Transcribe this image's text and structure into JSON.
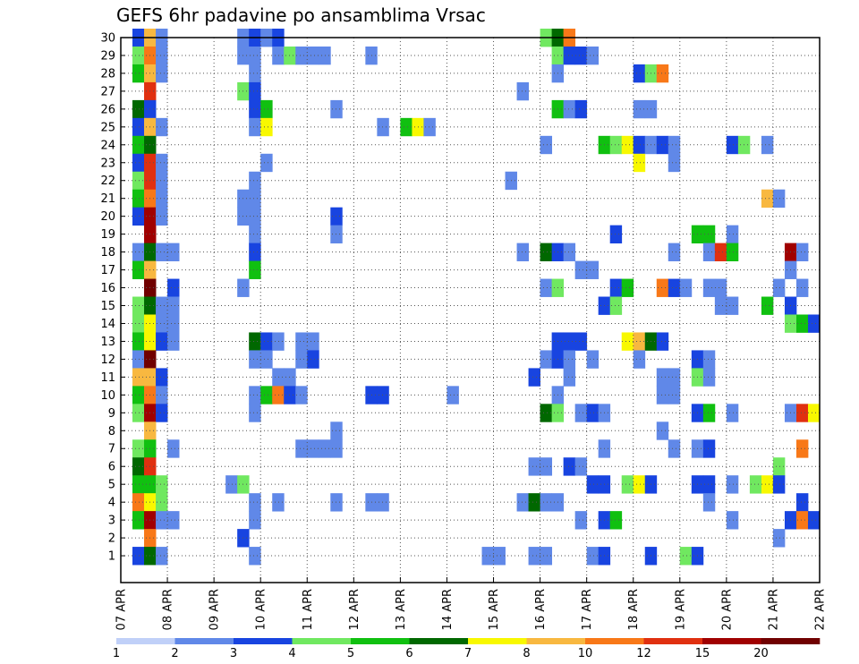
{
  "chart_data": {
    "type": "heatmap",
    "title": "GEFS 6hr padavine po ansamblima Vrsac",
    "xlabel": "",
    "ylabel": "",
    "x_ticks": [
      "07 APR",
      "08 APR",
      "09 APR",
      "10 APR",
      "11 APR",
      "12 APR",
      "13 APR",
      "14 APR",
      "15 APR",
      "16 APR",
      "17 APR",
      "18 APR",
      "19 APR",
      "20 APR",
      "21 APR",
      "22 APR"
    ],
    "x_range_days": [
      0,
      15
    ],
    "steps_per_day": 4,
    "y_ticks": [
      1,
      2,
      3,
      4,
      5,
      6,
      7,
      8,
      9,
      10,
      11,
      12,
      13,
      14,
      15,
      16,
      17,
      18,
      19,
      20,
      21,
      22,
      23,
      24,
      25,
      26,
      27,
      28,
      29,
      30
    ],
    "y_range": [
      0,
      30
    ],
    "grid": true,
    "colorbar": {
      "levels": [
        "1",
        "2",
        "3",
        "4",
        "5",
        "6",
        "7",
        "8",
        "10",
        "12",
        "15",
        "20"
      ],
      "colors": [
        "#c0d0f8",
        "#6088e8",
        "#1844e0",
        "#70e860",
        "#10c010",
        "#006800",
        "#f8f800",
        "#f8b840",
        "#f87818",
        "#e03010",
        "#a00000",
        "#700000"
      ]
    },
    "cells": [
      [
        30,
        1,
        2
      ],
      [
        30,
        2,
        7
      ],
      [
        30,
        3,
        1
      ],
      [
        30,
        10,
        1
      ],
      [
        30,
        11,
        2
      ],
      [
        30,
        12,
        1
      ],
      [
        30,
        13,
        2
      ],
      [
        30,
        36,
        3
      ],
      [
        30,
        37,
        5
      ],
      [
        30,
        38,
        8
      ],
      [
        29,
        1,
        3
      ],
      [
        29,
        2,
        8
      ],
      [
        29,
        3,
        1
      ],
      [
        29,
        10,
        1
      ],
      [
        29,
        11,
        1
      ],
      [
        29,
        13,
        1
      ],
      [
        29,
        14,
        3
      ],
      [
        29,
        15,
        1
      ],
      [
        29,
        16,
        1
      ],
      [
        29,
        17,
        1
      ],
      [
        29,
        21,
        1
      ],
      [
        29,
        37,
        3
      ],
      [
        29,
        38,
        2
      ],
      [
        29,
        39,
        2
      ],
      [
        29,
        40,
        1
      ],
      [
        28,
        1,
        4
      ],
      [
        28,
        2,
        7
      ],
      [
        28,
        3,
        1
      ],
      [
        28,
        11,
        1
      ],
      [
        28,
        37,
        1
      ],
      [
        28,
        44,
        2
      ],
      [
        28,
        45,
        3
      ],
      [
        28,
        46,
        8
      ],
      [
        27,
        2,
        9
      ],
      [
        27,
        10,
        3
      ],
      [
        27,
        11,
        2
      ],
      [
        27,
        34,
        1
      ],
      [
        26,
        1,
        5
      ],
      [
        26,
        2,
        2
      ],
      [
        26,
        11,
        2
      ],
      [
        26,
        12,
        4
      ],
      [
        26,
        18,
        1
      ],
      [
        26,
        37,
        4
      ],
      [
        26,
        38,
        1
      ],
      [
        26,
        39,
        2
      ],
      [
        26,
        44,
        1
      ],
      [
        26,
        45,
        1
      ],
      [
        25,
        1,
        2
      ],
      [
        25,
        2,
        7
      ],
      [
        25,
        3,
        1
      ],
      [
        25,
        11,
        1
      ],
      [
        25,
        12,
        6
      ],
      [
        25,
        22,
        1
      ],
      [
        25,
        24,
        4
      ],
      [
        25,
        25,
        6
      ],
      [
        25,
        26,
        1
      ],
      [
        24,
        1,
        4
      ],
      [
        24,
        2,
        5
      ],
      [
        24,
        36,
        1
      ],
      [
        24,
        41,
        4
      ],
      [
        24,
        42,
        3
      ],
      [
        24,
        43,
        6
      ],
      [
        24,
        44,
        2
      ],
      [
        24,
        45,
        1
      ],
      [
        24,
        46,
        2
      ],
      [
        24,
        47,
        1
      ],
      [
        24,
        52,
        2
      ],
      [
        24,
        53,
        3
      ],
      [
        24,
        55,
        1
      ],
      [
        23,
        1,
        2
      ],
      [
        23,
        2,
        9
      ],
      [
        23,
        3,
        1
      ],
      [
        23,
        12,
        1
      ],
      [
        23,
        44,
        6
      ],
      [
        23,
        47,
        1
      ],
      [
        22,
        1,
        3
      ],
      [
        22,
        2,
        9
      ],
      [
        22,
        3,
        1
      ],
      [
        22,
        11,
        1
      ],
      [
        22,
        33,
        1
      ],
      [
        21,
        1,
        4
      ],
      [
        21,
        2,
        8
      ],
      [
        21,
        3,
        1
      ],
      [
        21,
        10,
        1
      ],
      [
        21,
        11,
        1
      ],
      [
        21,
        55,
        7
      ],
      [
        21,
        56,
        1
      ],
      [
        20,
        1,
        2
      ],
      [
        20,
        2,
        10
      ],
      [
        20,
        3,
        1
      ],
      [
        20,
        10,
        1
      ],
      [
        20,
        11,
        1
      ],
      [
        20,
        18,
        2
      ],
      [
        19,
        2,
        10
      ],
      [
        19,
        11,
        1
      ],
      [
        19,
        18,
        1
      ],
      [
        19,
        42,
        2
      ],
      [
        19,
        49,
        4
      ],
      [
        19,
        50,
        4
      ],
      [
        19,
        52,
        1
      ],
      [
        18,
        1,
        1
      ],
      [
        18,
        2,
        5
      ],
      [
        18,
        3,
        1
      ],
      [
        18,
        4,
        1
      ],
      [
        18,
        11,
        2
      ],
      [
        18,
        34,
        1
      ],
      [
        18,
        36,
        5
      ],
      [
        18,
        37,
        2
      ],
      [
        18,
        38,
        1
      ],
      [
        18,
        47,
        1
      ],
      [
        18,
        50,
        1
      ],
      [
        18,
        51,
        9
      ],
      [
        18,
        52,
        4
      ],
      [
        18,
        57,
        10
      ],
      [
        18,
        58,
        1
      ],
      [
        17,
        1,
        4
      ],
      [
        17,
        2,
        7
      ],
      [
        17,
        11,
        4
      ],
      [
        17,
        39,
        1
      ],
      [
        17,
        40,
        1
      ],
      [
        17,
        57,
        1
      ],
      [
        16,
        2,
        11
      ],
      [
        16,
        4,
        2
      ],
      [
        16,
        10,
        1
      ],
      [
        16,
        36,
        1
      ],
      [
        16,
        37,
        3
      ],
      [
        16,
        42,
        2
      ],
      [
        16,
        43,
        4
      ],
      [
        16,
        46,
        8
      ],
      [
        16,
        47,
        2
      ],
      [
        16,
        48,
        1
      ],
      [
        16,
        50,
        1
      ],
      [
        16,
        51,
        1
      ],
      [
        16,
        56,
        1
      ],
      [
        16,
        58,
        1
      ],
      [
        15,
        1,
        3
      ],
      [
        15,
        2,
        5
      ],
      [
        15,
        3,
        1
      ],
      [
        15,
        4,
        1
      ],
      [
        15,
        41,
        2
      ],
      [
        15,
        42,
        3
      ],
      [
        15,
        51,
        1
      ],
      [
        15,
        52,
        1
      ],
      [
        15,
        55,
        4
      ],
      [
        15,
        57,
        2
      ],
      [
        14,
        1,
        3
      ],
      [
        14,
        2,
        6
      ],
      [
        14,
        3,
        1
      ],
      [
        14,
        4,
        1
      ],
      [
        14,
        57,
        3
      ],
      [
        14,
        58,
        4
      ],
      [
        14,
        59,
        2
      ],
      [
        13,
        1,
        4
      ],
      [
        13,
        2,
        6
      ],
      [
        13,
        3,
        2
      ],
      [
        13,
        4,
        1
      ],
      [
        13,
        11,
        5
      ],
      [
        13,
        12,
        2
      ],
      [
        13,
        13,
        1
      ],
      [
        13,
        15,
        1
      ],
      [
        13,
        16,
        1
      ],
      [
        13,
        37,
        2
      ],
      [
        13,
        38,
        2
      ],
      [
        13,
        39,
        2
      ],
      [
        13,
        43,
        6
      ],
      [
        13,
        44,
        7
      ],
      [
        13,
        45,
        5
      ],
      [
        13,
        46,
        2
      ],
      [
        12,
        1,
        1
      ],
      [
        12,
        2,
        11
      ],
      [
        12,
        11,
        1
      ],
      [
        12,
        12,
        1
      ],
      [
        12,
        15,
        1
      ],
      [
        12,
        16,
        2
      ],
      [
        12,
        36,
        1
      ],
      [
        12,
        37,
        2
      ],
      [
        12,
        38,
        1
      ],
      [
        12,
        40,
        1
      ],
      [
        12,
        44,
        1
      ],
      [
        12,
        49,
        2
      ],
      [
        12,
        50,
        1
      ],
      [
        11,
        1,
        7
      ],
      [
        11,
        2,
        7
      ],
      [
        11,
        3,
        2
      ],
      [
        11,
        13,
        1
      ],
      [
        11,
        14,
        1
      ],
      [
        11,
        35,
        2
      ],
      [
        11,
        38,
        1
      ],
      [
        11,
        46,
        1
      ],
      [
        11,
        47,
        1
      ],
      [
        11,
        49,
        3
      ],
      [
        11,
        50,
        1
      ],
      [
        10,
        1,
        4
      ],
      [
        10,
        2,
        8
      ],
      [
        10,
        3,
        1
      ],
      [
        10,
        11,
        1
      ],
      [
        10,
        12,
        4
      ],
      [
        10,
        13,
        8
      ],
      [
        10,
        14,
        2
      ],
      [
        10,
        15,
        1
      ],
      [
        10,
        21,
        2
      ],
      [
        10,
        22,
        2
      ],
      [
        10,
        28,
        1
      ],
      [
        10,
        37,
        1
      ],
      [
        10,
        46,
        1
      ],
      [
        10,
        47,
        1
      ],
      [
        9,
        1,
        3
      ],
      [
        9,
        2,
        10
      ],
      [
        9,
        3,
        2
      ],
      [
        9,
        11,
        1
      ],
      [
        9,
        36,
        5
      ],
      [
        9,
        37,
        3
      ],
      [
        9,
        39,
        1
      ],
      [
        9,
        40,
        2
      ],
      [
        9,
        41,
        1
      ],
      [
        9,
        49,
        2
      ],
      [
        9,
        50,
        4
      ],
      [
        9,
        52,
        1
      ],
      [
        9,
        57,
        1
      ],
      [
        9,
        58,
        9
      ],
      [
        9,
        59,
        6
      ],
      [
        8,
        2,
        7
      ],
      [
        8,
        18,
        1
      ],
      [
        8,
        46,
        1
      ],
      [
        7,
        1,
        3
      ],
      [
        7,
        2,
        4
      ],
      [
        7,
        4,
        1
      ],
      [
        7,
        15,
        1
      ],
      [
        7,
        16,
        1
      ],
      [
        7,
        17,
        1
      ],
      [
        7,
        18,
        1
      ],
      [
        7,
        41,
        1
      ],
      [
        7,
        47,
        1
      ],
      [
        7,
        49,
        1
      ],
      [
        7,
        50,
        2
      ],
      [
        7,
        58,
        8
      ],
      [
        6,
        1,
        5
      ],
      [
        6,
        2,
        9
      ],
      [
        6,
        35,
        1
      ],
      [
        6,
        36,
        1
      ],
      [
        6,
        38,
        2
      ],
      [
        6,
        39,
        1
      ],
      [
        6,
        56,
        3
      ],
      [
        5,
        1,
        4
      ],
      [
        5,
        2,
        4
      ],
      [
        5,
        3,
        3
      ],
      [
        5,
        9,
        1
      ],
      [
        5,
        10,
        3
      ],
      [
        5,
        40,
        2
      ],
      [
        5,
        41,
        2
      ],
      [
        5,
        43,
        3
      ],
      [
        5,
        44,
        6
      ],
      [
        5,
        45,
        2
      ],
      [
        5,
        49,
        2
      ],
      [
        5,
        50,
        2
      ],
      [
        5,
        52,
        1
      ],
      [
        5,
        54,
        3
      ],
      [
        5,
        55,
        6
      ],
      [
        5,
        56,
        2
      ],
      [
        4,
        1,
        8
      ],
      [
        4,
        2,
        6
      ],
      [
        4,
        3,
        3
      ],
      [
        4,
        11,
        1
      ],
      [
        4,
        13,
        1
      ],
      [
        4,
        18,
        1
      ],
      [
        4,
        21,
        1
      ],
      [
        4,
        22,
        1
      ],
      [
        4,
        34,
        1
      ],
      [
        4,
        35,
        5
      ],
      [
        4,
        36,
        1
      ],
      [
        4,
        37,
        1
      ],
      [
        4,
        50,
        1
      ],
      [
        4,
        58,
        2
      ],
      [
        3,
        1,
        4
      ],
      [
        3,
        2,
        10
      ],
      [
        3,
        3,
        1
      ],
      [
        3,
        4,
        1
      ],
      [
        3,
        11,
        1
      ],
      [
        3,
        39,
        1
      ],
      [
        3,
        41,
        2
      ],
      [
        3,
        42,
        4
      ],
      [
        3,
        52,
        1
      ],
      [
        3,
        57,
        2
      ],
      [
        3,
        58,
        8
      ],
      [
        3,
        59,
        2
      ],
      [
        2,
        2,
        8
      ],
      [
        2,
        10,
        2
      ],
      [
        2,
        56,
        1
      ],
      [
        1,
        1,
        2
      ],
      [
        1,
        2,
        5
      ],
      [
        1,
        3,
        1
      ],
      [
        1,
        11,
        1
      ],
      [
        1,
        31,
        1
      ],
      [
        1,
        32,
        1
      ],
      [
        1,
        35,
        1
      ],
      [
        1,
        36,
        1
      ],
      [
        1,
        40,
        1
      ],
      [
        1,
        41,
        2
      ],
      [
        1,
        45,
        2
      ],
      [
        1,
        48,
        3
      ],
      [
        1,
        49,
        2
      ]
    ]
  }
}
